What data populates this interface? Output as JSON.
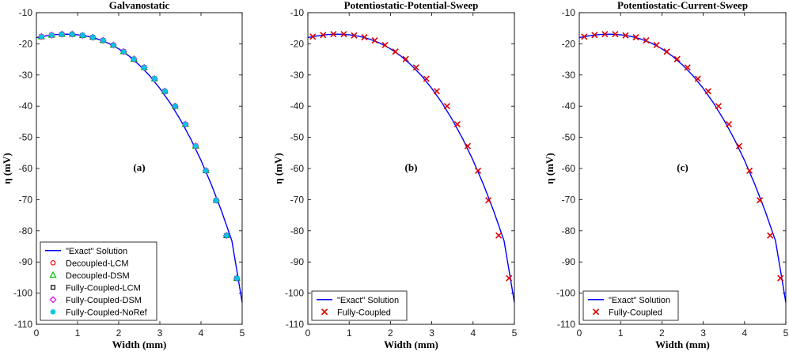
{
  "chart_data": [
    {
      "type": "line",
      "title": "Galvanostatic",
      "panel_label": "(a)",
      "xlabel": "Width (mm)",
      "ylabel": "η (mV)",
      "xlim": [
        0,
        5
      ],
      "ylim": [
        -110,
        -10
      ],
      "xticks": [
        "0",
        "1",
        "2",
        "3",
        "4",
        "5"
      ],
      "yticks": [
        "-10",
        "-20",
        "-30",
        "-40",
        "-50",
        "-60",
        "-70",
        "-80",
        "-90",
        "-100",
        "-110"
      ],
      "legend_position": "bottom-left",
      "curve": {
        "name": "\"Exact\" Solution",
        "x": [
          0,
          0.25,
          0.5,
          0.75,
          1.0,
          1.25,
          1.5,
          1.75,
          2.0,
          2.25,
          2.5,
          2.75,
          3.0,
          3.25,
          3.5,
          3.75,
          4.0,
          4.25,
          4.5,
          4.75,
          5.0
        ],
        "y": [
          -18.0,
          -17.4,
          -17.0,
          -16.9,
          -17.1,
          -17.6,
          -18.5,
          -19.8,
          -21.6,
          -23.9,
          -26.8,
          -30.2,
          -34.3,
          -39.0,
          -44.4,
          -50.5,
          -57.4,
          -65.1,
          -73.7,
          -83.2,
          -103.0
        ]
      },
      "markers_x": [
        0.12,
        0.37,
        0.62,
        0.87,
        1.12,
        1.37,
        1.62,
        1.87,
        2.12,
        2.37,
        2.62,
        2.87,
        3.12,
        3.37,
        3.62,
        3.87,
        4.12,
        4.37,
        4.62,
        4.87
      ],
      "markers_y": [
        -17.7,
        -17.2,
        -16.9,
        -16.9,
        -17.3,
        -17.9,
        -18.9,
        -20.4,
        -22.5,
        -24.9,
        -27.6,
        -31.2,
        -35.2,
        -40.0,
        -45.8,
        -52.8,
        -60.7,
        -70.2,
        -81.5,
        -95.2
      ],
      "series": [
        {
          "name": "Decoupled-LCM",
          "marker": "circle",
          "color": "#ff0000"
        },
        {
          "name": "Decoupled-DSM",
          "marker": "triangle",
          "color": "#00c000"
        },
        {
          "name": "Fully-Coupled-LCM",
          "marker": "square",
          "color": "#000000"
        },
        {
          "name": "Fully-Coupled-DSM",
          "marker": "diamond",
          "color": "#e000e0"
        },
        {
          "name": "Fully-Coupled-NoRef",
          "marker": "star",
          "color": "#00c8e0"
        }
      ]
    },
    {
      "type": "line",
      "title": "Potentiostatic-Potential-Sweep",
      "panel_label": "(b)",
      "xlabel": "Width (mm)",
      "ylabel": "η (mV)",
      "xlim": [
        0,
        5
      ],
      "ylim": [
        -110,
        -10
      ],
      "xticks": [
        "0",
        "1",
        "2",
        "3",
        "4",
        "5"
      ],
      "yticks": [
        "-10",
        "-20",
        "-30",
        "-40",
        "-50",
        "-60",
        "-70",
        "-80",
        "-90",
        "-100",
        "-110"
      ],
      "legend_position": "bottom-left",
      "curve": {
        "name": "\"Exact\" Solution",
        "x": [
          0,
          0.25,
          0.5,
          0.75,
          1.0,
          1.25,
          1.5,
          1.75,
          2.0,
          2.25,
          2.5,
          2.75,
          3.0,
          3.25,
          3.5,
          3.75,
          4.0,
          4.25,
          4.5,
          4.75,
          5.0
        ],
        "y": [
          -18.0,
          -17.4,
          -17.0,
          -16.9,
          -17.1,
          -17.6,
          -18.5,
          -19.8,
          -21.6,
          -23.9,
          -26.8,
          -30.2,
          -34.3,
          -39.0,
          -44.4,
          -50.5,
          -57.4,
          -65.1,
          -73.7,
          -83.2,
          -103.0
        ]
      },
      "markers_x": [
        0.12,
        0.37,
        0.62,
        0.87,
        1.12,
        1.37,
        1.62,
        1.87,
        2.12,
        2.37,
        2.62,
        2.87,
        3.12,
        3.37,
        3.62,
        3.87,
        4.12,
        4.37,
        4.62,
        4.87
      ],
      "markers_y": [
        -17.7,
        -17.2,
        -16.9,
        -16.9,
        -17.3,
        -17.9,
        -18.9,
        -20.4,
        -22.5,
        -24.9,
        -27.6,
        -31.2,
        -35.2,
        -40.0,
        -45.8,
        -52.8,
        -60.7,
        -70.2,
        -81.5,
        -95.2
      ],
      "series": [
        {
          "name": "Fully-Coupled",
          "marker": "x",
          "color": "#e00000"
        }
      ]
    },
    {
      "type": "line",
      "title": "Potentiostatic-Current-Sweep",
      "panel_label": "(c)",
      "xlabel": "Width (mm)",
      "ylabel": "η (mV)",
      "xlim": [
        0,
        5
      ],
      "ylim": [
        -110,
        -10
      ],
      "xticks": [
        "0",
        "1",
        "2",
        "3",
        "4",
        "5"
      ],
      "yticks": [
        "-10",
        "-20",
        "-30",
        "-40",
        "-50",
        "-60",
        "-70",
        "-80",
        "-90",
        "-100",
        "-110"
      ],
      "legend_position": "bottom-left",
      "curve": {
        "name": "\"Exact\" Solution",
        "x": [
          0,
          0.25,
          0.5,
          0.75,
          1.0,
          1.25,
          1.5,
          1.75,
          2.0,
          2.25,
          2.5,
          2.75,
          3.0,
          3.25,
          3.5,
          3.75,
          4.0,
          4.25,
          4.5,
          4.75,
          5.0
        ],
        "y": [
          -18.0,
          -17.4,
          -17.0,
          -16.9,
          -17.1,
          -17.6,
          -18.5,
          -19.8,
          -21.6,
          -23.9,
          -26.8,
          -30.2,
          -34.3,
          -39.0,
          -44.4,
          -50.5,
          -57.4,
          -65.1,
          -73.7,
          -83.2,
          -103.0
        ]
      },
      "markers_x": [
        0.12,
        0.37,
        0.62,
        0.87,
        1.12,
        1.37,
        1.62,
        1.87,
        2.12,
        2.37,
        2.62,
        2.87,
        3.12,
        3.37,
        3.62,
        3.87,
        4.12,
        4.37,
        4.62,
        4.87
      ],
      "markers_y": [
        -17.7,
        -17.2,
        -16.9,
        -16.9,
        -17.3,
        -17.9,
        -18.9,
        -20.4,
        -22.5,
        -24.9,
        -27.6,
        -31.2,
        -35.2,
        -40.0,
        -45.8,
        -52.8,
        -60.7,
        -70.2,
        -81.5,
        -95.2
      ],
      "series": [
        {
          "name": "Fully-Coupled",
          "marker": "x",
          "color": "#e00000"
        }
      ]
    }
  ],
  "colors": {
    "curve": "#0000ff",
    "axis": "#000000"
  }
}
